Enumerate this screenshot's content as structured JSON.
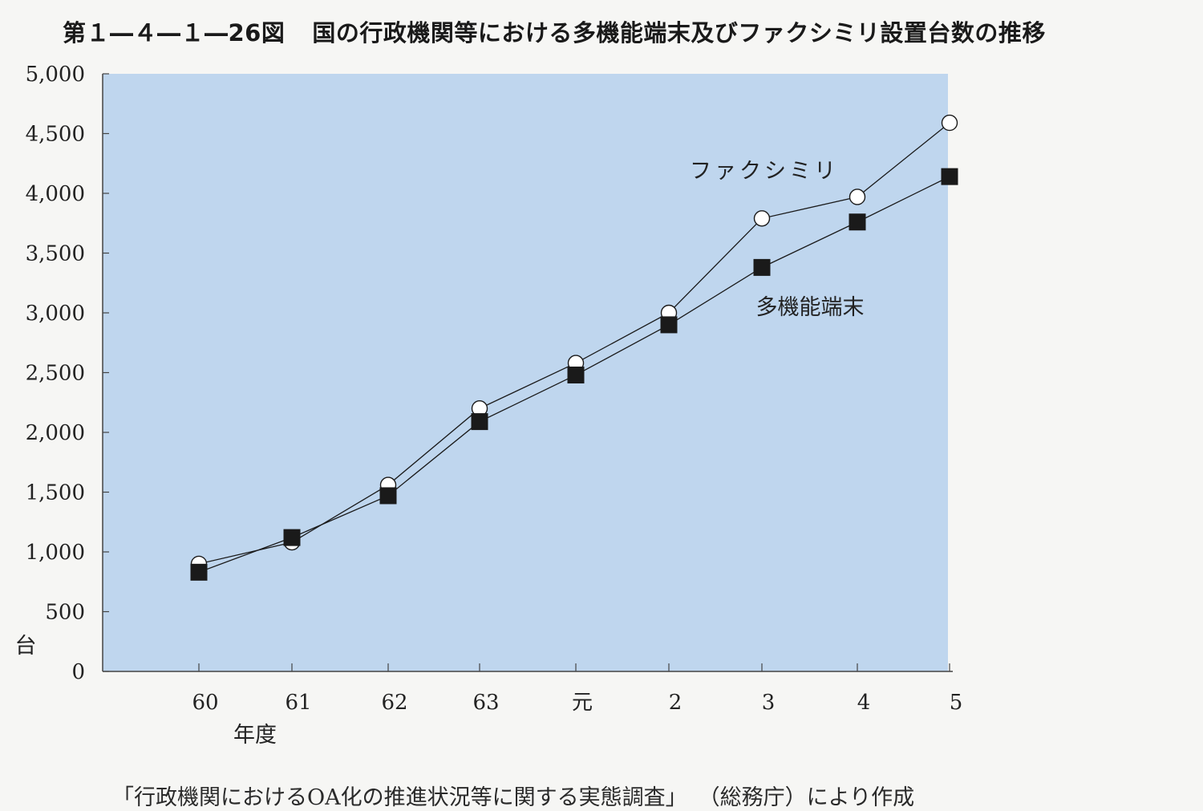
{
  "title": {
    "figure_number": "第１―４―１―26図",
    "text": "国の行政機関等における多機能端末及びファクシミリ設置台数の推移"
  },
  "source": {
    "survey": "「行政機関におけるOA化の推進状況等に関する実態調査」",
    "agency_and_note": "（総務庁）により作成"
  },
  "colors": {
    "plot_background": "#bfd6ee",
    "line": "#1a1a1a",
    "axis": "#444444"
  },
  "chart_data": {
    "type": "line",
    "categories": [
      "60",
      "61",
      "62",
      "63",
      "元",
      "2",
      "3",
      "4",
      "5"
    ],
    "xlabel": "年度",
    "ylabel": "台",
    "ylim": [
      0,
      5000
    ],
    "yticks": [
      0,
      500,
      1000,
      1500,
      2000,
      2500,
      3000,
      3500,
      4000,
      4500,
      5000
    ],
    "ytick_labels": [
      "0",
      "500",
      "1,000",
      "1,500",
      "2,000",
      "2,500",
      "3,000",
      "3,500",
      "4,000",
      "4,500",
      "5,000"
    ],
    "grid": false,
    "series": [
      {
        "name": "ファクシミリ",
        "marker": "open-circle",
        "values": [
          900,
          1080,
          1560,
          2200,
          2580,
          3000,
          3790,
          3970,
          4590
        ]
      },
      {
        "name": "多機能端末",
        "marker": "filled-square",
        "values": [
          830,
          1120,
          1470,
          2090,
          2480,
          2900,
          3380,
          3760,
          4140
        ]
      }
    ]
  }
}
